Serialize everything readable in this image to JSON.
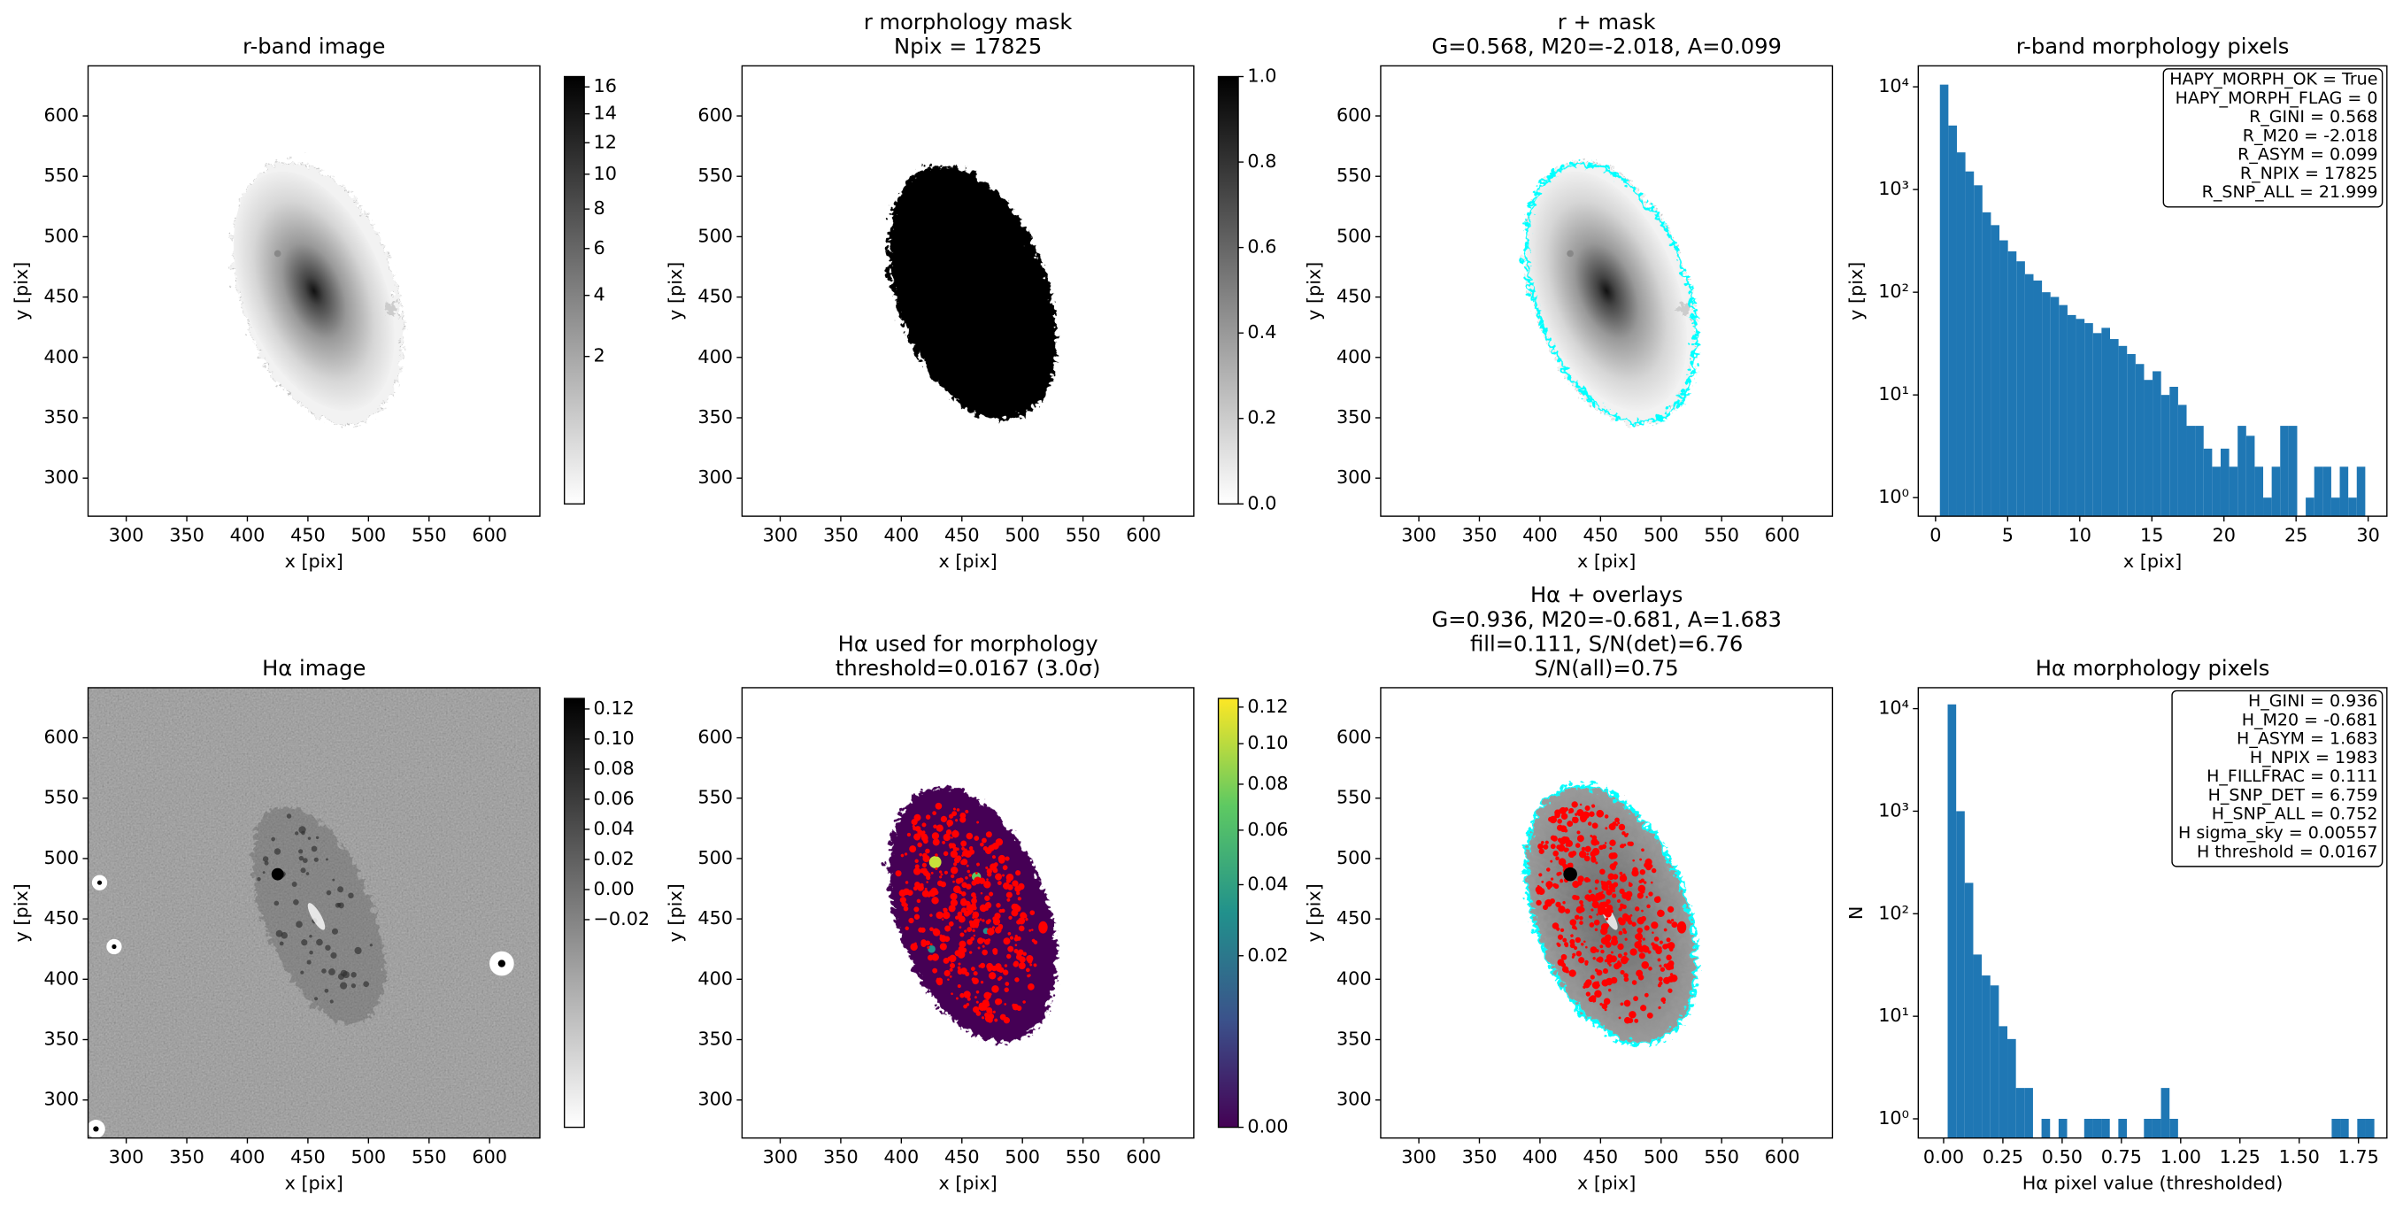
{
  "chart_data": [
    {
      "type": "image",
      "layers": [
        "r"
      ],
      "title": [
        "r-band image"
      ],
      "xlabel": "x [pix]",
      "ylabel": "y [pix]",
      "xlim": [
        268.5,
        641.5
      ],
      "ylim": [
        268.5,
        641.5
      ],
      "xticks": [
        300,
        350,
        400,
        450,
        500,
        550,
        600
      ],
      "yticks": [
        300,
        350,
        400,
        450,
        500,
        550,
        600
      ],
      "colormap": "gray_r",
      "colorbar": {
        "lim": [
          0,
          16.8
        ],
        "scale": "sqrt",
        "ticks": [
          2,
          4,
          6,
          8,
          10,
          12,
          14,
          16
        ]
      }
    },
    {
      "type": "image",
      "layers": [
        "mask"
      ],
      "title": [
        "r morphology mask",
        "Npix = 17825"
      ],
      "xlabel": "x [pix]",
      "ylabel": "y [pix]",
      "xlim": [
        268.5,
        641.5
      ],
      "ylim": [
        268.5,
        641.5
      ],
      "xticks": [
        300,
        350,
        400,
        450,
        500,
        550,
        600
      ],
      "yticks": [
        300,
        350,
        400,
        450,
        500,
        550,
        600
      ],
      "colormap": "gray_r",
      "colorbar": {
        "lim": [
          0,
          1
        ],
        "scale": "linear",
        "ticks": [
          {
            "value": 0,
            "label": "0.0"
          },
          0.2,
          0.4,
          0.6,
          0.8,
          {
            "value": 1,
            "label": "1.0"
          }
        ]
      }
    },
    {
      "type": "image",
      "layers": [
        "r",
        "contour"
      ],
      "title": [
        "r + mask",
        "G=0.568, M20=-2.018, A=0.099"
      ],
      "xlabel": "x [pix]",
      "ylabel": "y [pix]",
      "xlim": [
        268.5,
        641.5
      ],
      "ylim": [
        268.5,
        641.5
      ],
      "xticks": [
        300,
        350,
        400,
        450,
        500,
        550,
        600
      ],
      "yticks": [
        300,
        350,
        400,
        450,
        500,
        550,
        600
      ]
    },
    {
      "type": "histogram",
      "title": [
        "r-band morphology pixels"
      ],
      "xlabel": "x [pix]",
      "ylabel": "y [pix]",
      "color": "#1f77b4",
      "log_y": true,
      "bins": [
        0.3,
        0.89,
        1.48,
        2.07,
        2.66,
        3.25,
        3.84,
        4.43,
        5.02,
        5.61,
        6.2,
        6.79,
        7.38,
        7.97,
        8.56,
        9.15,
        9.74,
        10.33,
        10.92,
        11.51,
        12.1,
        12.69,
        13.28,
        13.87,
        14.46,
        15.05,
        15.64,
        16.23,
        16.82,
        17.41,
        18.0,
        18.59,
        19.18,
        19.77,
        20.36,
        20.95,
        21.54,
        22.13,
        22.72,
        23.31,
        23.9,
        24.49,
        25.08,
        25.67,
        26.26,
        26.85,
        27.44,
        28.03,
        28.62,
        29.21,
        29.8
      ],
      "values": [
        10500,
        4200,
        2300,
        1500,
        1100,
        600,
        450,
        320,
        250,
        200,
        150,
        130,
        100,
        90,
        75,
        60,
        55,
        50,
        40,
        45,
        35,
        30,
        25,
        20,
        14,
        17,
        10,
        12,
        8,
        5,
        5,
        3,
        2,
        3,
        2,
        5,
        4,
        2,
        1,
        2,
        5,
        5,
        0,
        1,
        2,
        2,
        1,
        2,
        1,
        2
      ],
      "xlim": [
        -1.2,
        31.3
      ],
      "ylim": [
        0.66,
        16000
      ],
      "xticks": [
        0,
        5,
        10,
        15,
        20,
        25,
        30
      ],
      "yticks": [
        {
          "value": 1,
          "label": "10⁰"
        },
        {
          "value": 10,
          "label": "10¹"
        },
        {
          "value": 100,
          "label": "10²"
        },
        {
          "value": 1000,
          "label": "10³"
        },
        {
          "value": 10000,
          "label": "10⁴"
        }
      ],
      "annotation_lines": [
        "HAPY_MORPH_OK = True",
        "HAPY_MORPH_FLAG = 0",
        "R_GINI = 0.568",
        "R_M20 = -2.018",
        "R_ASYM = 0.099",
        "R_NPIX = 17825",
        "R_SNP_ALL = 21.999"
      ]
    },
    {
      "type": "image",
      "layers": [
        "ha"
      ],
      "title": [
        "Hα image"
      ],
      "xlabel": "x [pix]",
      "ylabel": "y [pix]",
      "xlim": [
        268.5,
        641.5
      ],
      "ylim": [
        268.5,
        641.5
      ],
      "xticks": [
        300,
        350,
        400,
        450,
        500,
        550,
        600
      ],
      "yticks": [
        300,
        350,
        400,
        450,
        500,
        550,
        600
      ],
      "colormap": "gray_r",
      "colorbar": {
        "lim": [
          -0.158,
          0.127
        ],
        "scale": "linear",
        "ticks": [
          {
            "value": -0.02,
            "label": "−0.02"
          },
          {
            "value": 0,
            "label": "0.00"
          },
          0.02,
          0.04,
          0.06,
          0.08,
          {
            "value": 0.1,
            "label": "0.10"
          },
          0.12
        ]
      }
    },
    {
      "type": "image",
      "layers": [
        "ha_masked",
        "red"
      ],
      "title": [
        "Hα used for morphology",
        "threshold=0.0167 (3.0σ)"
      ],
      "xlabel": "x [pix]",
      "ylabel": "y [pix]",
      "xlim": [
        268.5,
        641.5
      ],
      "ylim": [
        268.5,
        641.5
      ],
      "xticks": [
        300,
        350,
        400,
        450,
        500,
        550,
        600
      ],
      "yticks": [
        300,
        350,
        400,
        450,
        500,
        550,
        600
      ],
      "colormap": "viridis",
      "colorbar": {
        "lim": [
          0,
          0.125
        ],
        "scale": "sqrt",
        "ticks": [
          {
            "value": 0,
            "label": "0.00"
          },
          0.02,
          0.04,
          0.06,
          0.08,
          {
            "value": 0.1,
            "label": "0.10"
          },
          0.12
        ]
      }
    },
    {
      "type": "image",
      "layers": [
        "ha_gray",
        "red",
        "contour",
        "ha_core"
      ],
      "title": [
        "Hα + overlays",
        "G=0.936, M20=-0.681, A=1.683",
        "fill=0.111, S/N(det)=6.76",
        "S/N(all)=0.75"
      ],
      "xlabel": "x [pix]",
      "ylabel": "y [pix]",
      "xlim": [
        268.5,
        641.5
      ],
      "ylim": [
        268.5,
        641.5
      ],
      "xticks": [
        300,
        350,
        400,
        450,
        500,
        550,
        600
      ],
      "yticks": [
        300,
        350,
        400,
        450,
        500,
        550,
        600
      ]
    },
    {
      "type": "histogram",
      "title": [
        "Hα morphology pixels"
      ],
      "xlabel": "Hα pixel value (thresholded)",
      "ylabel": "N",
      "color": "#1f77b4",
      "log_y": true,
      "bins": [
        0.017,
        0.053,
        0.089,
        0.125,
        0.161,
        0.197,
        0.233,
        0.269,
        0.305,
        0.341,
        0.377,
        0.413,
        0.449,
        0.485,
        0.521,
        0.557,
        0.593,
        0.629,
        0.665,
        0.701,
        0.737,
        0.773,
        0.809,
        0.845,
        0.881,
        0.917,
        0.953,
        0.989,
        1.025,
        1.061,
        1.097,
        1.133,
        1.169,
        1.205,
        1.241,
        1.277,
        1.313,
        1.349,
        1.385,
        1.421,
        1.457,
        1.493,
        1.529,
        1.565,
        1.601,
        1.637,
        1.673,
        1.709,
        1.745,
        1.781,
        1.817
      ],
      "values": [
        11000,
        1000,
        200,
        40,
        25,
        20,
        8,
        6,
        2,
        2,
        0,
        1,
        0,
        1,
        0,
        0,
        1,
        1,
        1,
        0,
        1,
        0,
        0,
        1,
        1,
        2,
        1,
        0,
        0,
        0,
        0,
        0,
        0,
        0,
        0,
        0,
        0,
        0,
        0,
        0,
        0,
        0,
        0,
        0,
        0,
        1,
        1,
        0,
        1,
        1
      ],
      "xlim": [
        -0.107,
        1.87
      ],
      "ylim": [
        0.65,
        16000
      ],
      "xticks": [
        {
          "value": 0,
          "label": "0.00"
        },
        0.25,
        {
          "value": 0.5,
          "label": "0.50"
        },
        0.75,
        {
          "value": 1,
          "label": "1.00"
        },
        1.25,
        {
          "value": 1.5,
          "label": "1.50"
        },
        1.75
      ],
      "yticks": [
        {
          "value": 1,
          "label": "10⁰"
        },
        {
          "value": 10,
          "label": "10¹"
        },
        {
          "value": 100,
          "label": "10²"
        },
        {
          "value": 1000,
          "label": "10³"
        },
        {
          "value": 10000,
          "label": "10⁴"
        }
      ],
      "annotation_lines": [
        "H_GINI = 0.936",
        "H_M20 = -0.681",
        "H_ASYM = 1.683",
        "H_NPIX = 1983",
        "H_FILLFRAC = 0.111",
        "H_SNP_DET = 6.759",
        "H_SNP_ALL = 0.752",
        "H sigma_sky = 0.00557",
        "H threshold = 0.0167"
      ]
    }
  ]
}
